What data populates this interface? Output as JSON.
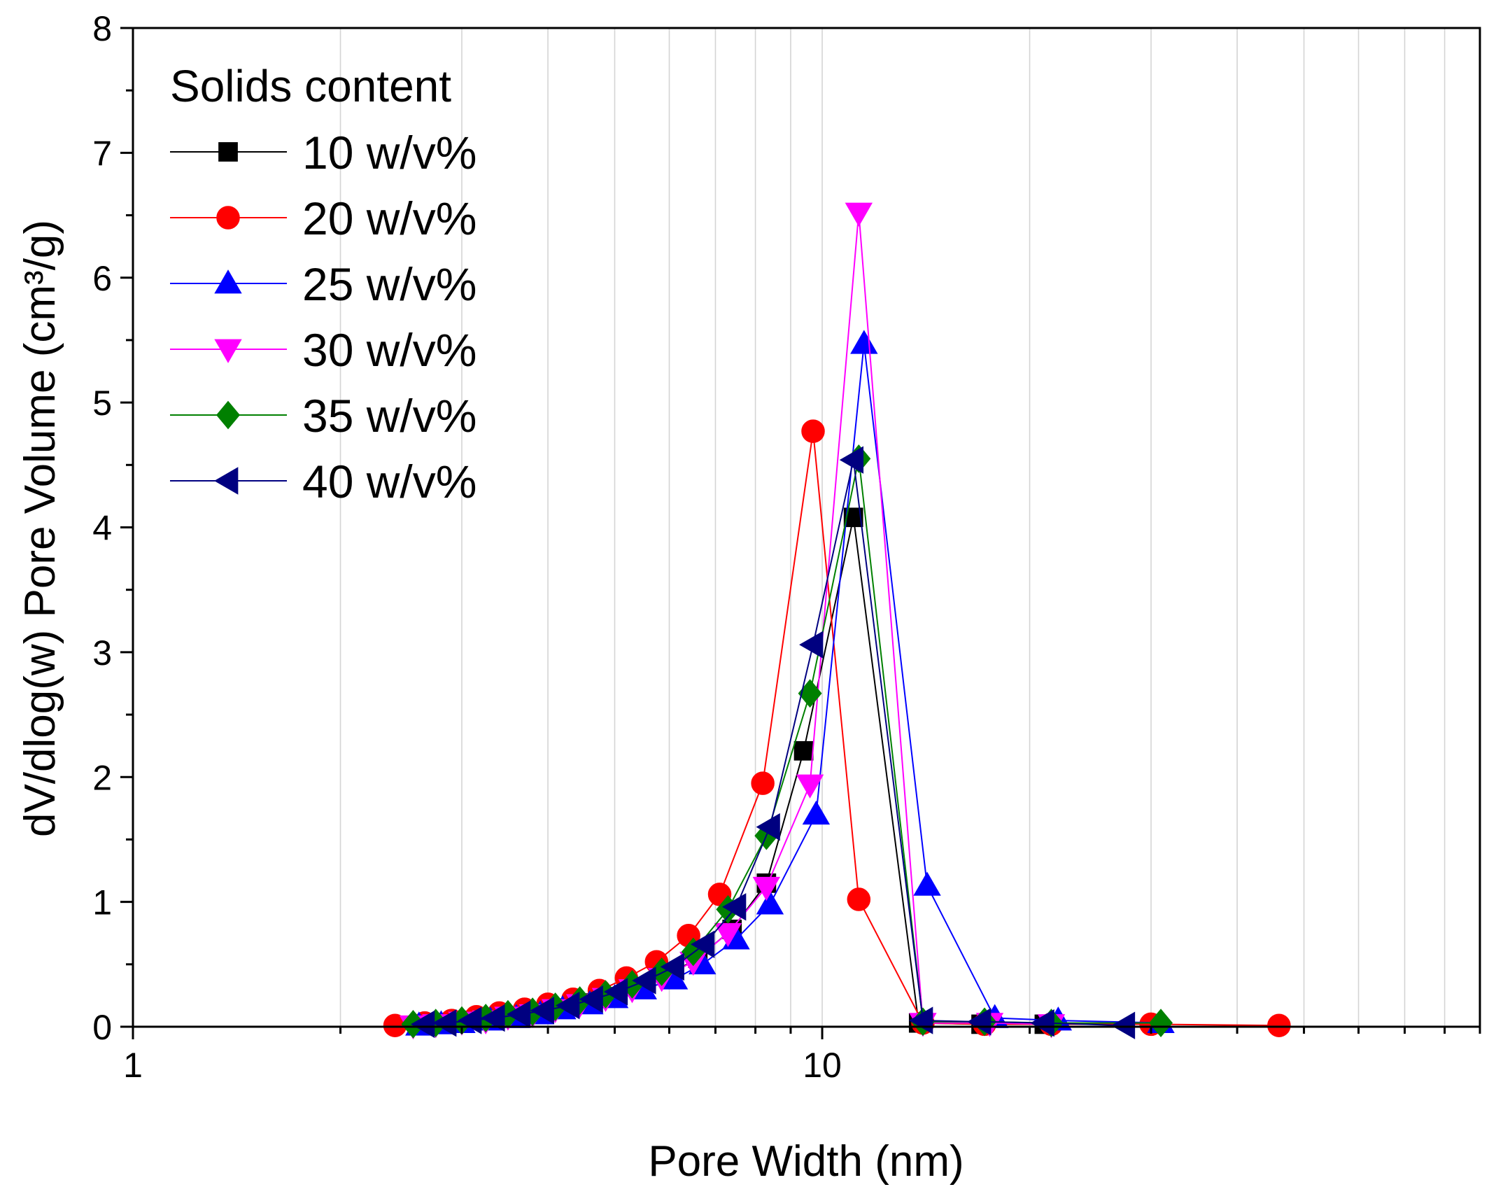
{
  "chart_data": {
    "type": "line",
    "xscale": "log",
    "xlabel": "Pore Width (nm)",
    "ylabel": "dV/dlog(w) Pore Volume (cm³/g)",
    "xlim": [
      1,
      90
    ],
    "ylim": [
      0,
      8
    ],
    "x_ticks": [
      1,
      10
    ],
    "x_tick_labels": [
      "1",
      "10"
    ],
    "y_ticks": [
      0,
      1,
      2,
      3,
      4,
      5,
      6,
      7,
      8
    ],
    "y_tick_labels": [
      "0",
      "1",
      "2",
      "3",
      "4",
      "5",
      "6",
      "7",
      "8"
    ],
    "grid": "vertical minor",
    "legend": {
      "title": "Solids content",
      "placement": "top-left"
    },
    "series": [
      {
        "name": "10 w/v%",
        "color": "#000000",
        "marker": "square",
        "x": [
          2.6,
          2.8,
          3.0,
          3.25,
          3.5,
          3.8,
          4.1,
          4.5,
          4.9,
          5.4,
          6.0,
          6.6,
          7.4,
          8.3,
          9.4,
          11.1,
          13.8,
          17.0,
          21.0
        ],
        "y": [
          0.02,
          0.03,
          0.05,
          0.06,
          0.08,
          0.11,
          0.15,
          0.19,
          0.24,
          0.32,
          0.42,
          0.55,
          0.78,
          1.15,
          2.21,
          4.08,
          0.03,
          0.02,
          0.02
        ]
      },
      {
        "name": "20 w/v%",
        "color": "#ff0000",
        "marker": "circle",
        "x": [
          2.4,
          2.65,
          2.9,
          3.15,
          3.4,
          3.7,
          4.0,
          4.35,
          4.75,
          5.2,
          5.75,
          6.4,
          7.1,
          8.2,
          9.7,
          11.3,
          14.0,
          17.2,
          21.5,
          30.0,
          46.0
        ],
        "y": [
          0.01,
          0.03,
          0.05,
          0.08,
          0.11,
          0.14,
          0.18,
          0.22,
          0.29,
          0.39,
          0.52,
          0.73,
          1.06,
          1.95,
          4.77,
          1.02,
          0.03,
          0.02,
          0.02,
          0.02,
          0.01
        ]
      },
      {
        "name": "25 w/v%",
        "color": "#0000ff",
        "marker": "triangle-up",
        "x": [
          2.6,
          2.8,
          3.0,
          3.3,
          3.6,
          3.9,
          4.2,
          4.6,
          5.0,
          5.5,
          6.1,
          6.7,
          7.5,
          8.4,
          9.8,
          11.5,
          14.2,
          17.8,
          22.0,
          31.0
        ],
        "y": [
          0.01,
          0.02,
          0.03,
          0.05,
          0.07,
          0.1,
          0.14,
          0.18,
          0.23,
          0.3,
          0.38,
          0.5,
          0.7,
          0.98,
          1.7,
          5.47,
          1.13,
          0.07,
          0.05,
          0.03
        ]
      },
      {
        "name": "30 w/v%",
        "color": "#ff00ff",
        "marker": "triangle-down",
        "x": [
          2.55,
          2.75,
          3.0,
          3.25,
          3.5,
          3.8,
          4.1,
          4.45,
          4.85,
          5.3,
          5.85,
          6.5,
          7.3,
          8.3,
          9.6,
          11.3,
          14.0,
          17.5,
          21.5
        ],
        "y": [
          0.01,
          0.02,
          0.04,
          0.05,
          0.08,
          0.1,
          0.14,
          0.18,
          0.23,
          0.3,
          0.39,
          0.52,
          0.75,
          1.12,
          1.94,
          6.52,
          0.03,
          0.03,
          0.02
        ]
      },
      {
        "name": "35 w/v%",
        "color": "#008000",
        "marker": "diamond",
        "x": [
          2.55,
          2.75,
          3.0,
          3.25,
          3.5,
          3.8,
          4.1,
          4.45,
          4.85,
          5.3,
          5.85,
          6.5,
          7.3,
          8.3,
          9.6,
          11.3,
          14.0,
          17.2,
          21.5,
          31.0
        ],
        "y": [
          0.02,
          0.03,
          0.05,
          0.07,
          0.1,
          0.12,
          0.16,
          0.21,
          0.26,
          0.34,
          0.44,
          0.6,
          0.94,
          1.53,
          2.67,
          4.55,
          0.04,
          0.04,
          0.03,
          0.03
        ]
      },
      {
        "name": "40 w/v%",
        "color": "#000080",
        "marker": "triangle-left",
        "x": [
          2.65,
          2.85,
          3.1,
          3.35,
          3.65,
          3.95,
          4.3,
          4.65,
          5.05,
          5.55,
          6.1,
          6.75,
          7.5,
          8.4,
          9.7,
          11.1,
          14.0,
          17.0,
          21.0,
          27.5
        ],
        "y": [
          0.02,
          0.03,
          0.05,
          0.07,
          0.1,
          0.13,
          0.17,
          0.22,
          0.28,
          0.37,
          0.48,
          0.66,
          0.96,
          1.6,
          3.06,
          4.54,
          0.05,
          0.04,
          0.03,
          0.01
        ]
      }
    ]
  }
}
